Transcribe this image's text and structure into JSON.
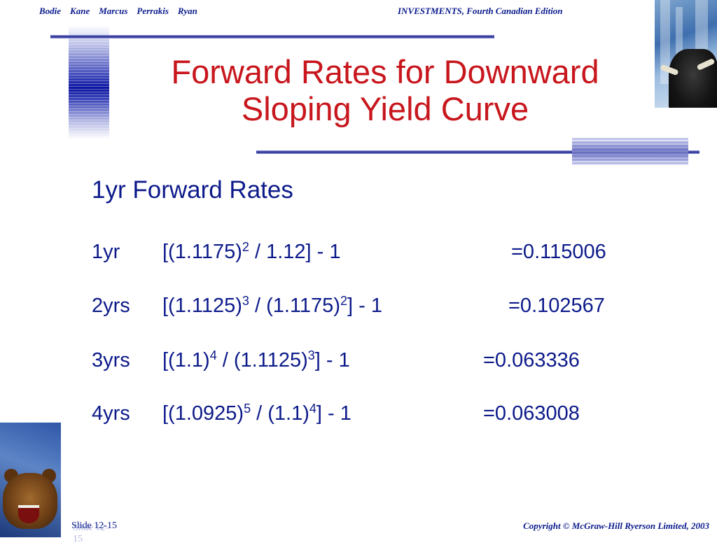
{
  "header": {
    "authors": "Bodie    Kane    Marcus    Perrakis    Ryan",
    "book": "INVESTMENTS, Fourth Canadian Edition"
  },
  "title": {
    "line1": "Forward Rates for Downward",
    "line2": "Sloping Yield Curve"
  },
  "subheading": "1yr Forward Rates",
  "rows": [
    {
      "label": "1yr",
      "base1": "[(1.1175)",
      "exp1": "2",
      "mid": " / 1.12] - 1",
      "base2": "",
      "exp2": "",
      "tail": "",
      "result": "=0.115006"
    },
    {
      "label": "2yrs",
      "base1": "[(1.1125)",
      "exp1": "3",
      "mid": " / (1.1175)",
      "exp2": "2",
      "tail": "] - 1",
      "result": "=0.102567"
    },
    {
      "label": "3yrs",
      "base1": "[(1.1)",
      "exp1": "4",
      "mid": " / (1.1125)",
      "exp2": "3",
      "tail": "] - 1",
      "result": "=0.063336"
    },
    {
      "label": "4yrs",
      "base1": "[(1.0925)",
      "exp1": "5",
      "mid": " / (1.1)",
      "exp2": "4",
      "tail": "] - 1",
      "result": "=0.063008"
    }
  ],
  "footer": {
    "slide": "Slide 12-15",
    "copyright": "Copyright © McGraw-Hill Ryerson Limited, 2003"
  },
  "colors": {
    "title": "#c8161d",
    "body": "#0c1a8a",
    "accent": "#1a228f"
  },
  "icons": {
    "top_right": "bull-image",
    "bottom_left": "bear-image"
  }
}
